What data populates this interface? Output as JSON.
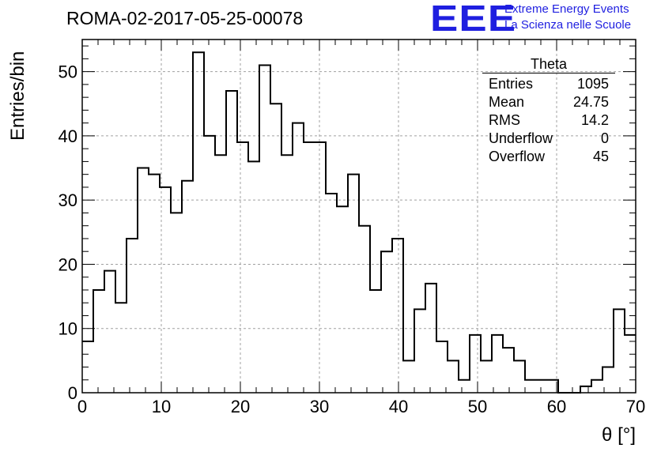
{
  "header": {
    "run_title": "ROMA-02-2017-05-25-00078",
    "logo_text": "EEE",
    "logo_line1": "Extreme Energy Events",
    "logo_line2": "La Scienza nelle Scuole"
  },
  "stats": {
    "title": "Theta",
    "rows": [
      {
        "label": "Entries",
        "value": "1095"
      },
      {
        "label": "Mean",
        "value": "24.75"
      },
      {
        "label": "RMS",
        "value": "14.2"
      },
      {
        "label": "Underflow",
        "value": "0"
      },
      {
        "label": "Overflow",
        "value": "45"
      }
    ]
  },
  "colors": {
    "line": "#000000",
    "grid": "#a0a0a0",
    "logo": "#1f1fe0",
    "background": "#ffffff"
  },
  "chart_data": {
    "type": "bar",
    "style": "step-histogram",
    "xlabel": "θ [°]",
    "ylabel": "Entries/bin",
    "xlim": [
      0,
      70
    ],
    "ylim": [
      0,
      55
    ],
    "grid": true,
    "legend": "stats box top-right",
    "bin_width": 1.4,
    "x_ticks": [
      0,
      10,
      20,
      30,
      40,
      50,
      60,
      70
    ],
    "y_ticks": [
      0,
      10,
      20,
      30,
      40,
      50
    ],
    "values": [
      8,
      16,
      19,
      14,
      24,
      35,
      34,
      32,
      28,
      33,
      53,
      40,
      37,
      47,
      39,
      36,
      51,
      45,
      37,
      42,
      39,
      39,
      31,
      29,
      34,
      26,
      16,
      22,
      24,
      5,
      13,
      17,
      8,
      5,
      2,
      9,
      5,
      9,
      7,
      5,
      2,
      2,
      2,
      0,
      0,
      1,
      2,
      4,
      13,
      9
    ]
  }
}
